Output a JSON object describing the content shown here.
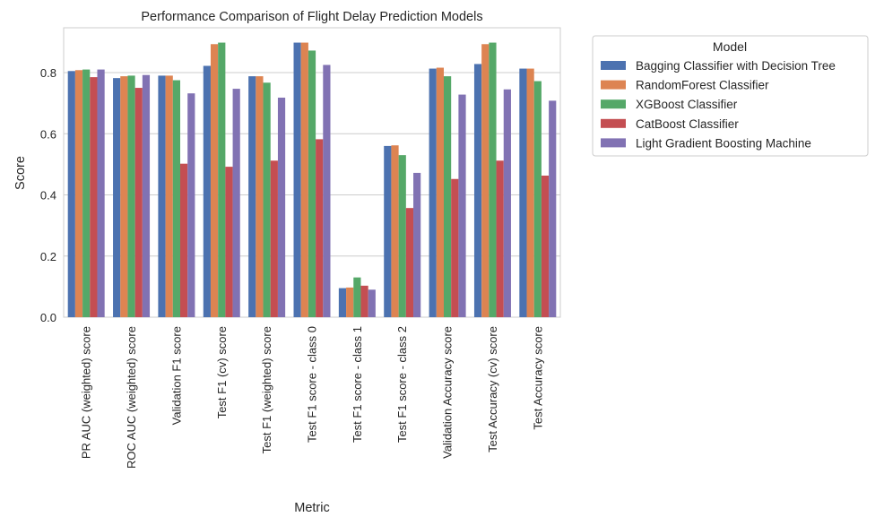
{
  "chart_data": {
    "type": "bar",
    "title": "Performance Comparison of Flight Delay Prediction Models",
    "xlabel": "Metric",
    "ylabel": "Score",
    "ylim": [
      0,
      0.95
    ],
    "yticks": [
      "0.0",
      "0.2",
      "0.4",
      "0.6",
      "0.8"
    ],
    "ytick_values": [
      0,
      0.2,
      0.4,
      0.6,
      0.8
    ],
    "grid": true,
    "legend": {
      "title": "Model",
      "position": "outside-right-top"
    },
    "categories": [
      "PR AUC (weighted) score",
      "ROC AUC (weighted) score",
      "Validation F1 score",
      "Test F1 (cv) score",
      "Test F1 (weighted) score",
      "Test F1 score - class 0",
      "Test F1 score - class 1",
      "Test F1 score - class 2",
      "Validation Accuracy score",
      "Test Accuracy (cv) score",
      "Test Accuracy score"
    ],
    "series": [
      {
        "name": "Bagging Classifier with Decision Tree",
        "color": "#4c72b0",
        "values": [
          0.805,
          0.782,
          0.79,
          0.822,
          0.788,
          0.898,
          0.095,
          0.56,
          0.813,
          0.828,
          0.813
        ]
      },
      {
        "name": "RandomForest Classifier",
        "color": "#dd8452",
        "values": [
          0.808,
          0.788,
          0.79,
          0.893,
          0.788,
          0.898,
          0.097,
          0.562,
          0.816,
          0.893,
          0.813
        ]
      },
      {
        "name": "XGBoost Classifier",
        "color": "#55a868",
        "values": [
          0.81,
          0.79,
          0.775,
          0.898,
          0.767,
          0.872,
          0.13,
          0.53,
          0.788,
          0.898,
          0.772
        ]
      },
      {
        "name": "CatBoost Classifier",
        "color": "#c44e52",
        "values": [
          0.785,
          0.75,
          0.502,
          0.492,
          0.512,
          0.582,
          0.103,
          0.357,
          0.452,
          0.512,
          0.463
        ]
      },
      {
        "name": "Light Gradient Boosting Machine",
        "color": "#8172b3",
        "values": [
          0.81,
          0.792,
          0.732,
          0.747,
          0.718,
          0.825,
          0.09,
          0.472,
          0.728,
          0.745,
          0.708
        ]
      }
    ]
  }
}
